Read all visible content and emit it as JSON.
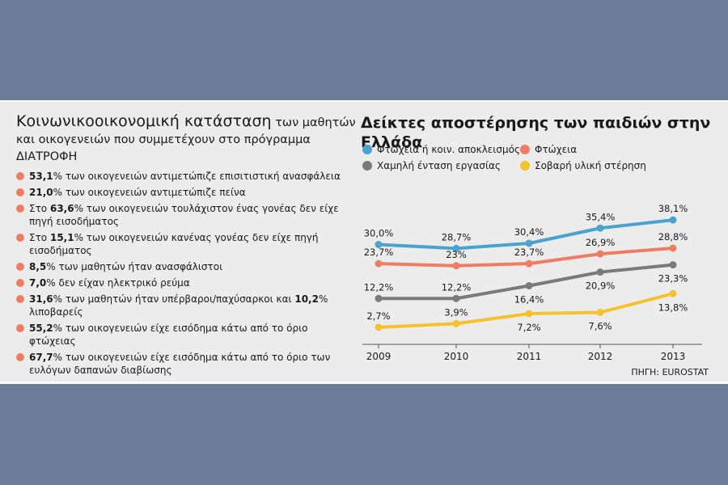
{
  "left": {
    "title_main": "Κοινωνικοοικονομική κατάσταση",
    "title_rest": " των μαθητών και οικογενειών που συμμετέχουν στο πρόγραμμα ΔΙΑΤΡΟΦΗ",
    "items": [
      {
        "bold": "53,1",
        "text": "% των οικογενειών αντιμετώπιζε επισιτιστική ανασφάλεια"
      },
      {
        "bold": "21,0",
        "text": "% των οικογενειών αντιμετώπιζε πείνα"
      },
      {
        "pre": "Στο ",
        "bold": "63,6",
        "text": "% των οικογενειών τουλάχιστον ένας γονέας δεν είχε πηγή εισοδήματος"
      },
      {
        "pre": "Στο ",
        "bold": "15,1",
        "text": "% των οικογενειών κανένας γονέας δεν είχε πηγή εισοδήματος"
      },
      {
        "bold": "8,5",
        "text": "% των μαθητών ήταν ανασφάλιστοι"
      },
      {
        "bold": "7,0",
        "text": "% δεν είχαν ηλεκτρικό ρεύμα"
      },
      {
        "bold": "31,6",
        "text": "% των μαθητών ήταν υπέρβαροι/παχύσαρκοι και ",
        "bold2": "10,2",
        "text2": "% λιποβαρείς"
      },
      {
        "bold": "55,2",
        "text": "% των οικογενειών είχε εισόδημα κάτω από το όριο φτώχειας"
      },
      {
        "bold": "67,7",
        "text": "% των οικογενειών είχε εισόδημα κάτω από το όριο των ευλόγων δαπανών διαβίωσης"
      }
    ]
  },
  "right": {
    "title": "Δείκτες αποστέρησης των παιδιών στην Ελλάδα",
    "source": "ΠΗΓΗ: EUROSTAT"
  },
  "chart_data": {
    "type": "line",
    "x": [
      "2009",
      "2010",
      "2011",
      "2012",
      "2013"
    ],
    "series": [
      {
        "name": "Φτώχεια ή κοιν. αποκλεισμός",
        "color": "#4aa3cf",
        "values": [
          30.0,
          28.7,
          30.4,
          35.4,
          38.1
        ],
        "labels": [
          "30,0%",
          "28,7%",
          "30,4%",
          "35,4%",
          "38,1%"
        ]
      },
      {
        "name": "Φτώχεια",
        "color": "#ef7d64",
        "values": [
          23.7,
          23,
          23.7,
          26.9,
          28.8
        ],
        "labels": [
          "23,7%",
          "23%",
          "23,7%",
          "26,9%",
          "28,8%"
        ]
      },
      {
        "name": "Χαμηλή ένταση εργασίας",
        "color": "#7a7a7a",
        "values": [
          12.2,
          12.2,
          16.4,
          20.9,
          23.3
        ],
        "labels": [
          "12,2%",
          "12,2%",
          "16,4%",
          "20,9%",
          "23,3%"
        ]
      },
      {
        "name": "Σοβαρή υλική στέρηση",
        "color": "#f5c22e",
        "values": [
          2.7,
          3.9,
          7.2,
          7.6,
          13.8
        ],
        "labels": [
          "2,7%",
          "3,9%",
          "7,2%",
          "7,6%",
          "13,8%"
        ]
      }
    ],
    "grid": false,
    "legend": "top"
  }
}
